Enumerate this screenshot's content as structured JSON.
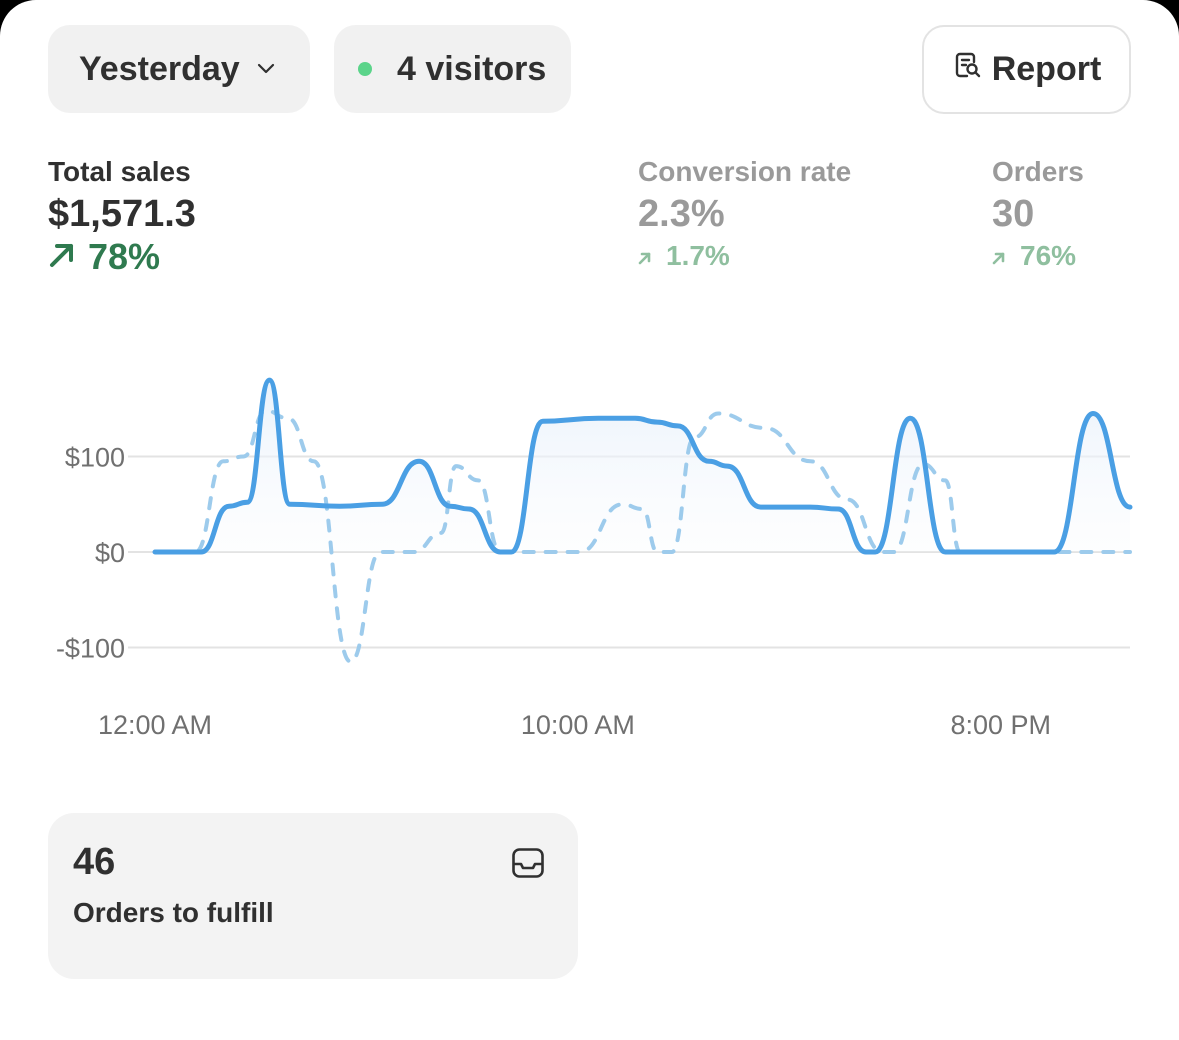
{
  "filters": {
    "date_label": "Yesterday",
    "visitors_label": "4 visitors",
    "visitors_dot_color": "#5bd48a"
  },
  "actions": {
    "report_label": "Report"
  },
  "metrics": {
    "sales": {
      "label": "Total sales",
      "value": "$1,571.3",
      "change": "78%"
    },
    "conversion": {
      "label": "Conversion rate",
      "value": "2.3%",
      "change": "1.7%"
    },
    "orders": {
      "label": "Orders",
      "value": "30",
      "change": "76%"
    }
  },
  "chart_data": {
    "type": "line",
    "y_tick_labels": [
      "$100",
      "$0",
      "-$100"
    ],
    "x_tick_labels": [
      "12:00 AM",
      "10:00 AM",
      "8:00 PM"
    ],
    "ylim": [
      -100,
      180
    ],
    "grid": true,
    "series": [
      {
        "style": "solid",
        "color": "#4a9fe4",
        "points": [
          [
            0,
            0
          ],
          [
            2.5,
            0
          ],
          [
            4,
            48
          ],
          [
            5,
            52
          ],
          [
            6.2,
            180
          ],
          [
            7.3,
            50
          ],
          [
            10,
            48
          ],
          [
            12.3,
            50
          ],
          [
            14.3,
            95
          ],
          [
            16,
            48
          ],
          [
            17,
            45
          ],
          [
            18.7,
            0
          ],
          [
            19.3,
            0
          ],
          [
            21,
            137
          ],
          [
            24,
            140
          ],
          [
            26,
            140
          ],
          [
            27.2,
            136
          ],
          [
            28.3,
            132
          ],
          [
            30,
            95
          ],
          [
            31,
            90
          ],
          [
            32.8,
            47
          ],
          [
            35.5,
            47
          ],
          [
            37,
            45
          ],
          [
            38.5,
            0
          ],
          [
            39,
            0
          ],
          [
            40.9,
            140
          ],
          [
            42.8,
            0
          ],
          [
            45,
            0
          ],
          [
            47,
            0
          ],
          [
            48.7,
            0
          ],
          [
            50.8,
            145
          ],
          [
            52.8,
            47
          ]
        ]
      },
      {
        "style": "dashed",
        "color": "#9dcbec",
        "points": [
          [
            0,
            0
          ],
          [
            2.2,
            0
          ],
          [
            3.7,
            95
          ],
          [
            4.8,
            100
          ],
          [
            6,
            148
          ],
          [
            7.2,
            140
          ],
          [
            8.6,
            95
          ],
          [
            10.6,
            -115
          ],
          [
            12.2,
            0
          ],
          [
            14,
            0
          ],
          [
            15.5,
            20
          ],
          [
            16.3,
            90
          ],
          [
            17.5,
            75
          ],
          [
            18.7,
            0
          ],
          [
            23,
            0
          ],
          [
            25.3,
            50
          ],
          [
            26.4,
            45
          ],
          [
            27.2,
            0
          ],
          [
            28,
            0
          ],
          [
            29.2,
            120
          ],
          [
            30.5,
            145
          ],
          [
            33,
            130
          ],
          [
            35.5,
            95
          ],
          [
            37.5,
            55
          ],
          [
            39.4,
            0
          ],
          [
            40,
            0
          ],
          [
            41.6,
            92
          ],
          [
            42.8,
            75
          ],
          [
            43.6,
            0
          ],
          [
            47,
            0
          ],
          [
            52.8,
            0
          ]
        ]
      }
    ]
  },
  "fulfill_card": {
    "count": "46",
    "label": "Orders to fulfill"
  },
  "colors": {
    "accent_line": "#4a9fe4",
    "positive_green": "#2f7a4f",
    "faded_green": "#8fbf9f"
  },
  "icons": {
    "date_dropdown": "chevron-down-icon",
    "report": "report-search-icon",
    "delta": "arrow-up-right-icon",
    "fulfill": "inbox-icon"
  }
}
